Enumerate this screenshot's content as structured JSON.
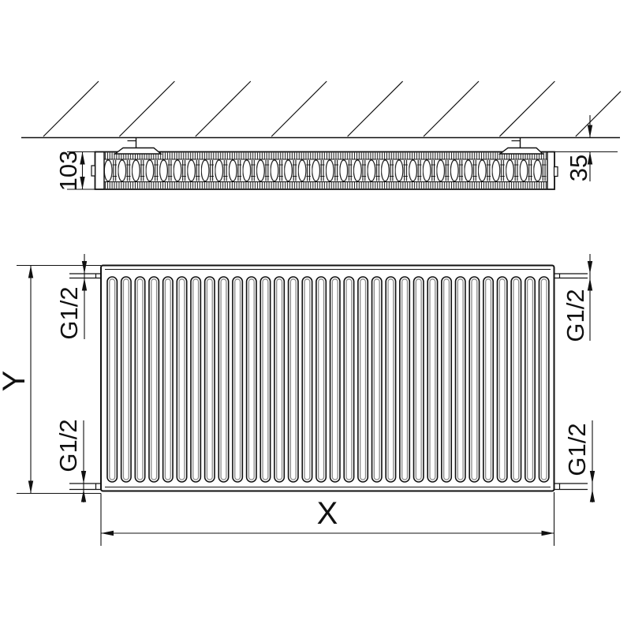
{
  "drawing": {
    "title": "panel-radiator-technical-drawing",
    "top_view": {
      "depth_label": "103",
      "wall_gap_label": "35"
    },
    "front_view": {
      "width_label": "X",
      "height_label": "Y",
      "connections": [
        {
          "position": "top-left",
          "label": "G1/2"
        },
        {
          "position": "bottom-left",
          "label": "G1/2"
        },
        {
          "position": "top-right",
          "label": "G1/2"
        },
        {
          "position": "bottom-right",
          "label": "G1/2"
        }
      ]
    },
    "colors": {
      "line": "#111111",
      "background": "#ffffff",
      "tube_inner": "#8a8a8a"
    },
    "counts": {
      "front_tubes": 32,
      "wall_hatch_lines": 8
    }
  }
}
